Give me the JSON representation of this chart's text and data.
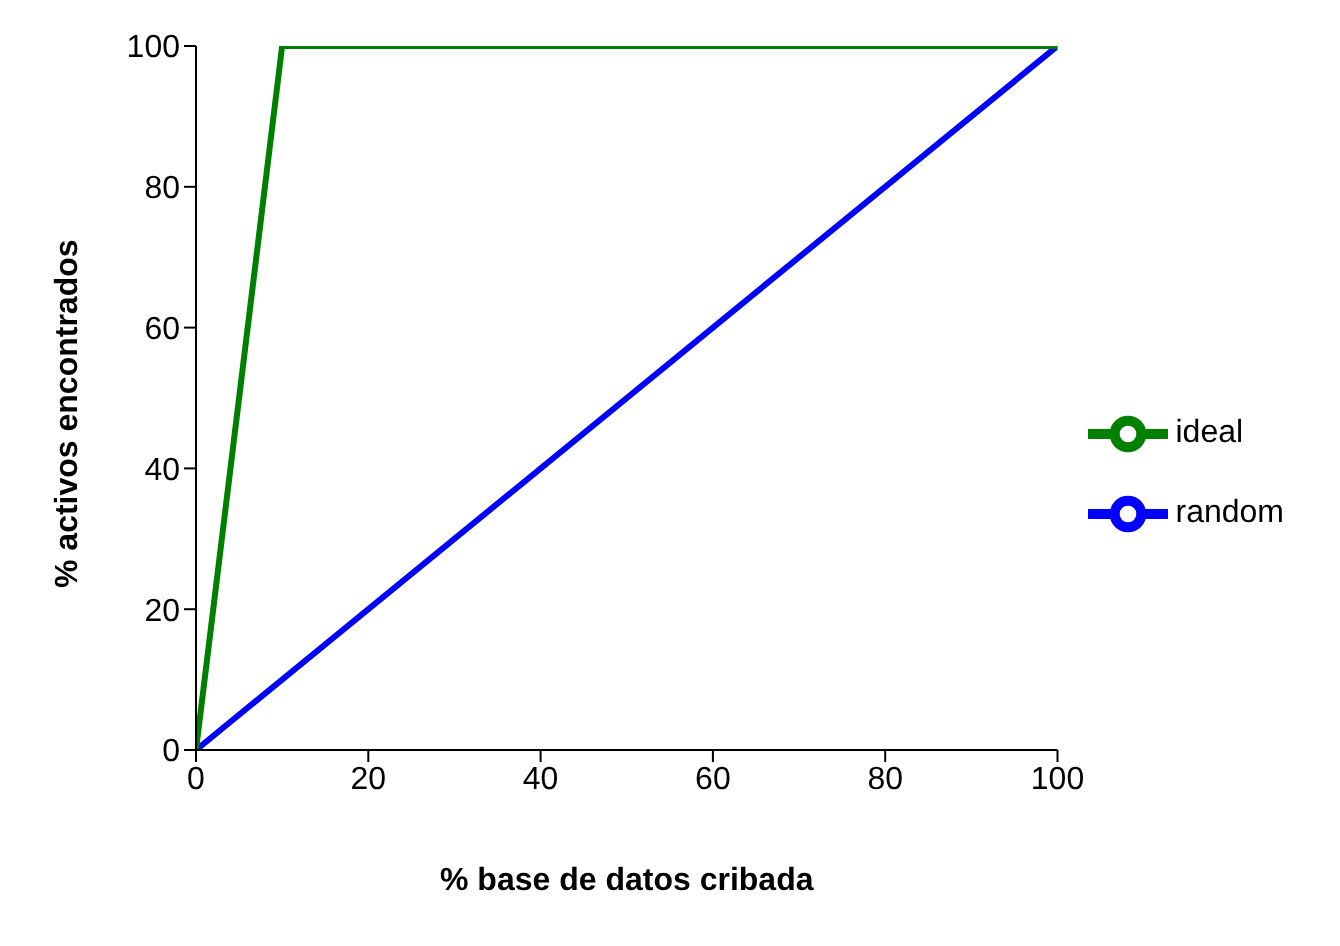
{
  "chart_data": {
    "type": "line",
    "xlabel": "% base de datos cribada",
    "ylabel": "% activos encontrados",
    "xlim": [
      0,
      100
    ],
    "ylim": [
      0,
      100
    ],
    "xticks": [
      0,
      20,
      40,
      60,
      80,
      100
    ],
    "yticks": [
      0,
      20,
      40,
      60,
      80,
      100
    ],
    "grid": false,
    "legend": "right",
    "marker": "none",
    "line_style": "solid",
    "series": [
      {
        "name": "random",
        "color": "#0000ff",
        "x": [
          0,
          100
        ],
        "values": [
          0,
          100
        ]
      },
      {
        "name": "ideal",
        "color": "#008000",
        "x": [
          0,
          10,
          100
        ],
        "values": [
          0,
          100,
          100
        ]
      }
    ]
  }
}
